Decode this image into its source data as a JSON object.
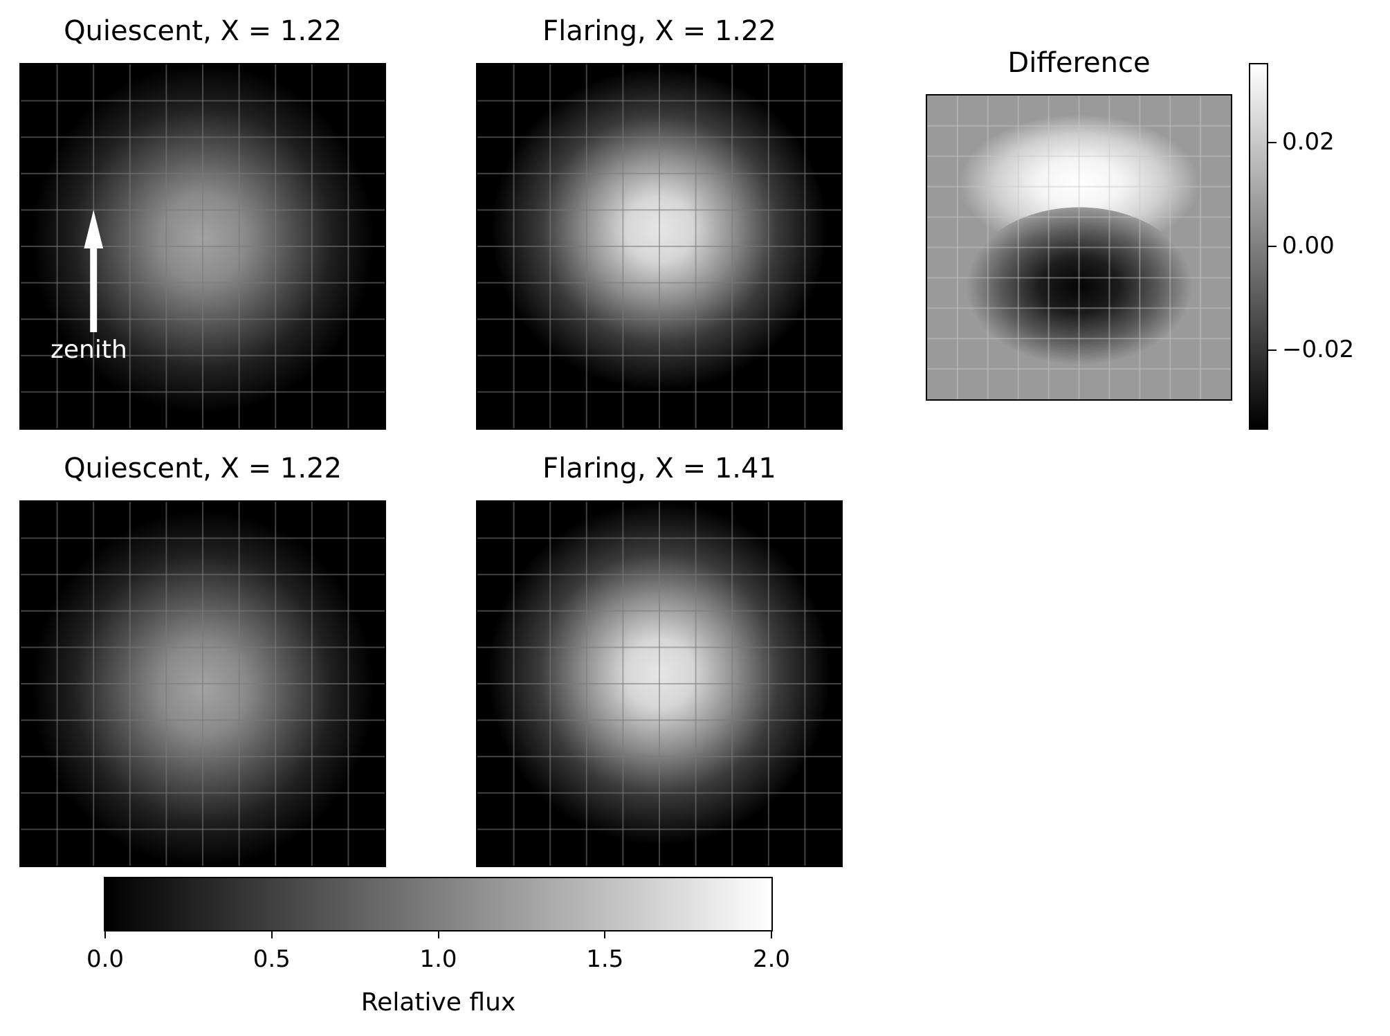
{
  "chart_data": [
    {
      "type": "heatmap",
      "title": "Quiescent, X = 1.22",
      "annotation": {
        "label": "zenith",
        "arrow": "up"
      },
      "colormap": "gray",
      "value_range": [
        0.0,
        2.0
      ],
      "peak_value": 1.05,
      "grid": true
    },
    {
      "type": "heatmap",
      "title": "Flaring, X = 1.22",
      "colormap": "gray",
      "value_range": [
        0.0,
        2.0
      ],
      "peak_value": 1.75,
      "grid": true
    },
    {
      "type": "heatmap",
      "title": "Difference",
      "colormap": "gray",
      "value_range": [
        -0.035,
        0.035
      ],
      "colorbar": {
        "ticks": [
          "0.02",
          "0.00",
          "−0.02"
        ],
        "tick_values": [
          0.02,
          0.0,
          -0.02
        ]
      },
      "grid": true
    },
    {
      "type": "heatmap",
      "title": "Quiescent, X = 1.22",
      "colormap": "gray",
      "value_range": [
        0.0,
        2.0
      ],
      "peak_value": 1.05,
      "grid": true
    },
    {
      "type": "heatmap",
      "title": "Flaring, X = 1.41",
      "colormap": "gray",
      "value_range": [
        0.0,
        2.0
      ],
      "peak_value": 1.75,
      "grid": true
    }
  ],
  "colorbar": {
    "label": "Relative flux",
    "range": [
      0.0,
      2.0
    ],
    "ticks": [
      "0.0",
      "0.5",
      "1.0",
      "1.5",
      "2.0"
    ],
    "tick_values": [
      0.0,
      0.5,
      1.0,
      1.5,
      2.0
    ]
  }
}
